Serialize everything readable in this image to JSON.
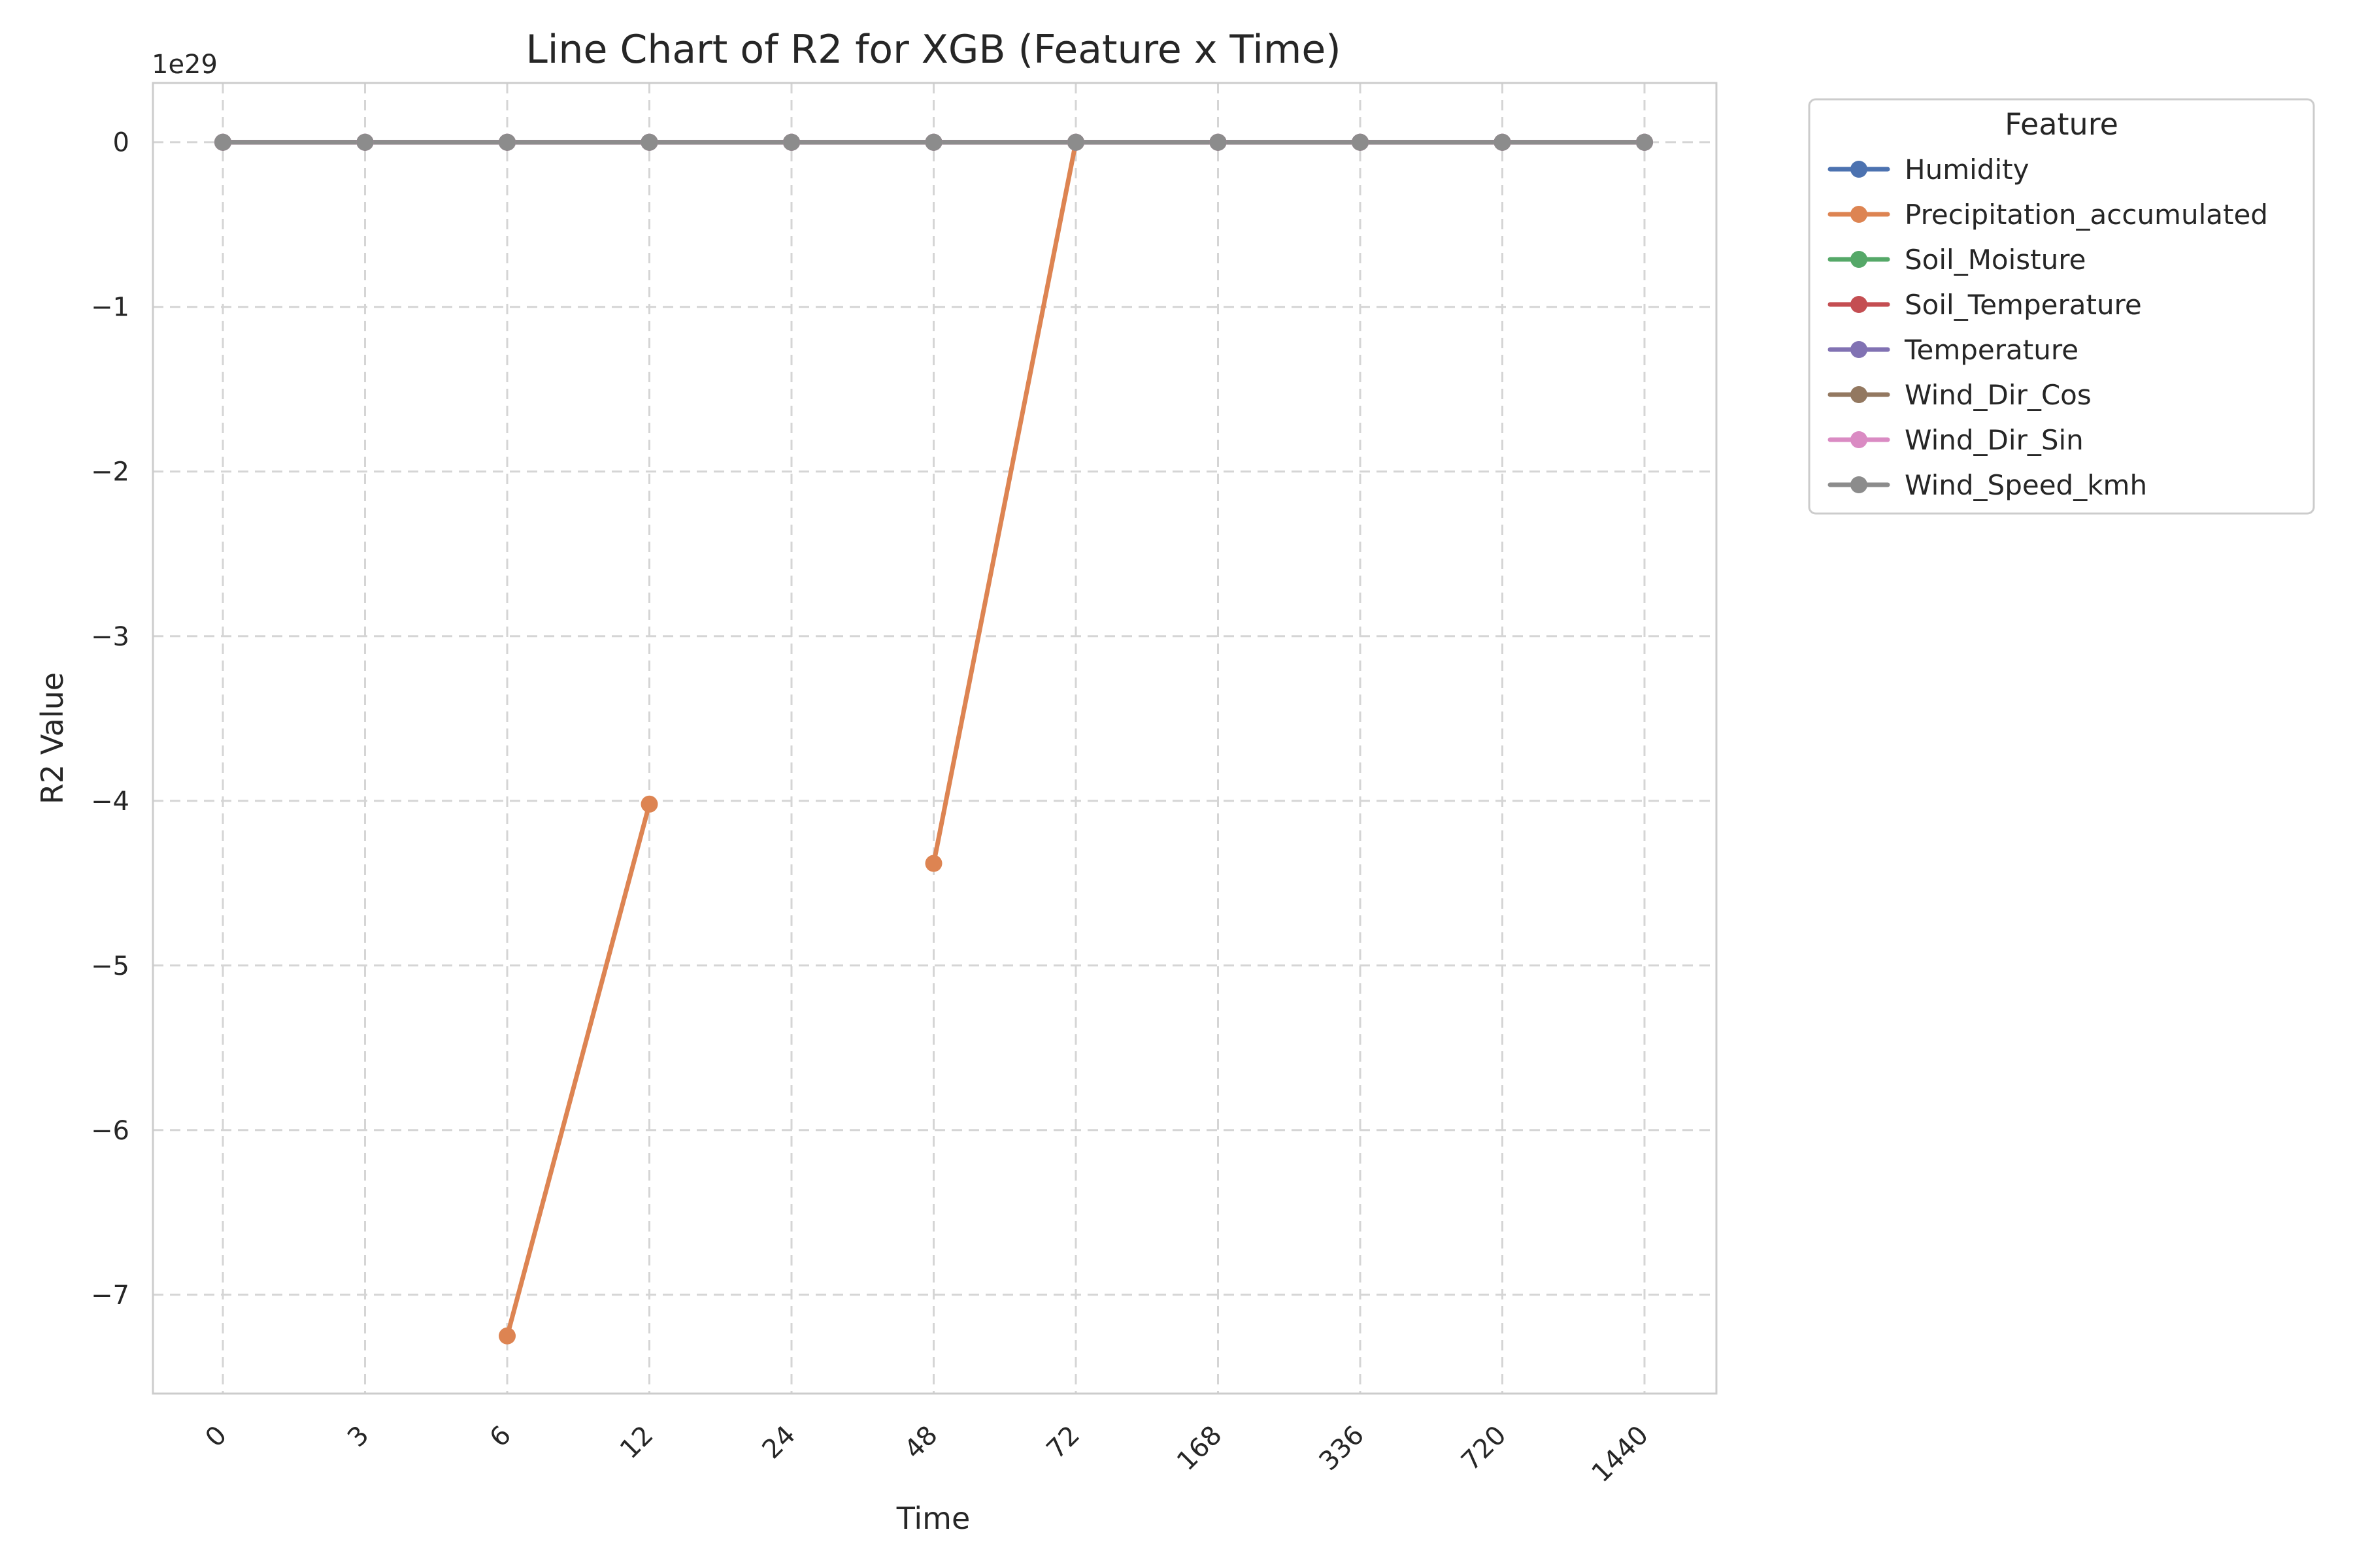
{
  "chart_data": {
    "type": "line",
    "title": "Line Chart of R2 for XGB (Feature x Time)",
    "xlabel": "Time",
    "ylabel": "R2 Value",
    "y_offset_label": "1e29",
    "y_scale_exponent": 29,
    "categories": [
      "0",
      "3",
      "6",
      "12",
      "24",
      "48",
      "72",
      "168",
      "336",
      "720",
      "1440"
    ],
    "y_ticks": [
      0,
      -1,
      -2,
      -3,
      -4,
      -5,
      -6,
      -7
    ],
    "y_tick_labels": [
      "0",
      "−1",
      "−2",
      "−3",
      "−4",
      "−5",
      "−6",
      "−7"
    ],
    "ylim": [
      -7.6,
      0.36
    ],
    "grid": true,
    "legend_title": "Feature",
    "legend_position": "outside-top-right",
    "series": [
      {
        "name": "Humidity",
        "color": "#4c72b0",
        "values": [
          0,
          0,
          0,
          0,
          0,
          0,
          0,
          0,
          0,
          0,
          0
        ]
      },
      {
        "name": "Precipitation_accumulated",
        "color": "#dd8452",
        "values": [
          null,
          null,
          -7.25,
          -4.02,
          null,
          -4.38,
          0,
          null,
          null,
          null,
          null
        ]
      },
      {
        "name": "Soil_Moisture",
        "color": "#55a868",
        "values": [
          0,
          0,
          0,
          0,
          0,
          0,
          0,
          0,
          0,
          0,
          0
        ]
      },
      {
        "name": "Soil_Temperature",
        "color": "#c44e52",
        "values": [
          0,
          0,
          0,
          0,
          0,
          0,
          0,
          0,
          0,
          0,
          0
        ]
      },
      {
        "name": "Temperature",
        "color": "#8172b3",
        "values": [
          0,
          0,
          0,
          0,
          0,
          0,
          0,
          0,
          0,
          0,
          0
        ]
      },
      {
        "name": "Wind_Dir_Cos",
        "color": "#937860",
        "values": [
          0,
          0,
          0,
          0,
          0,
          0,
          0,
          0,
          0,
          0,
          0
        ]
      },
      {
        "name": "Wind_Dir_Sin",
        "color": "#da8bc3",
        "values": [
          0,
          0,
          0,
          0,
          0,
          0,
          0,
          0,
          0,
          0,
          0
        ]
      },
      {
        "name": "Wind_Speed_kmh",
        "color": "#8c8c8c",
        "values": [
          0,
          0,
          0,
          0,
          0,
          0,
          0,
          0,
          0,
          0,
          0
        ]
      }
    ]
  }
}
